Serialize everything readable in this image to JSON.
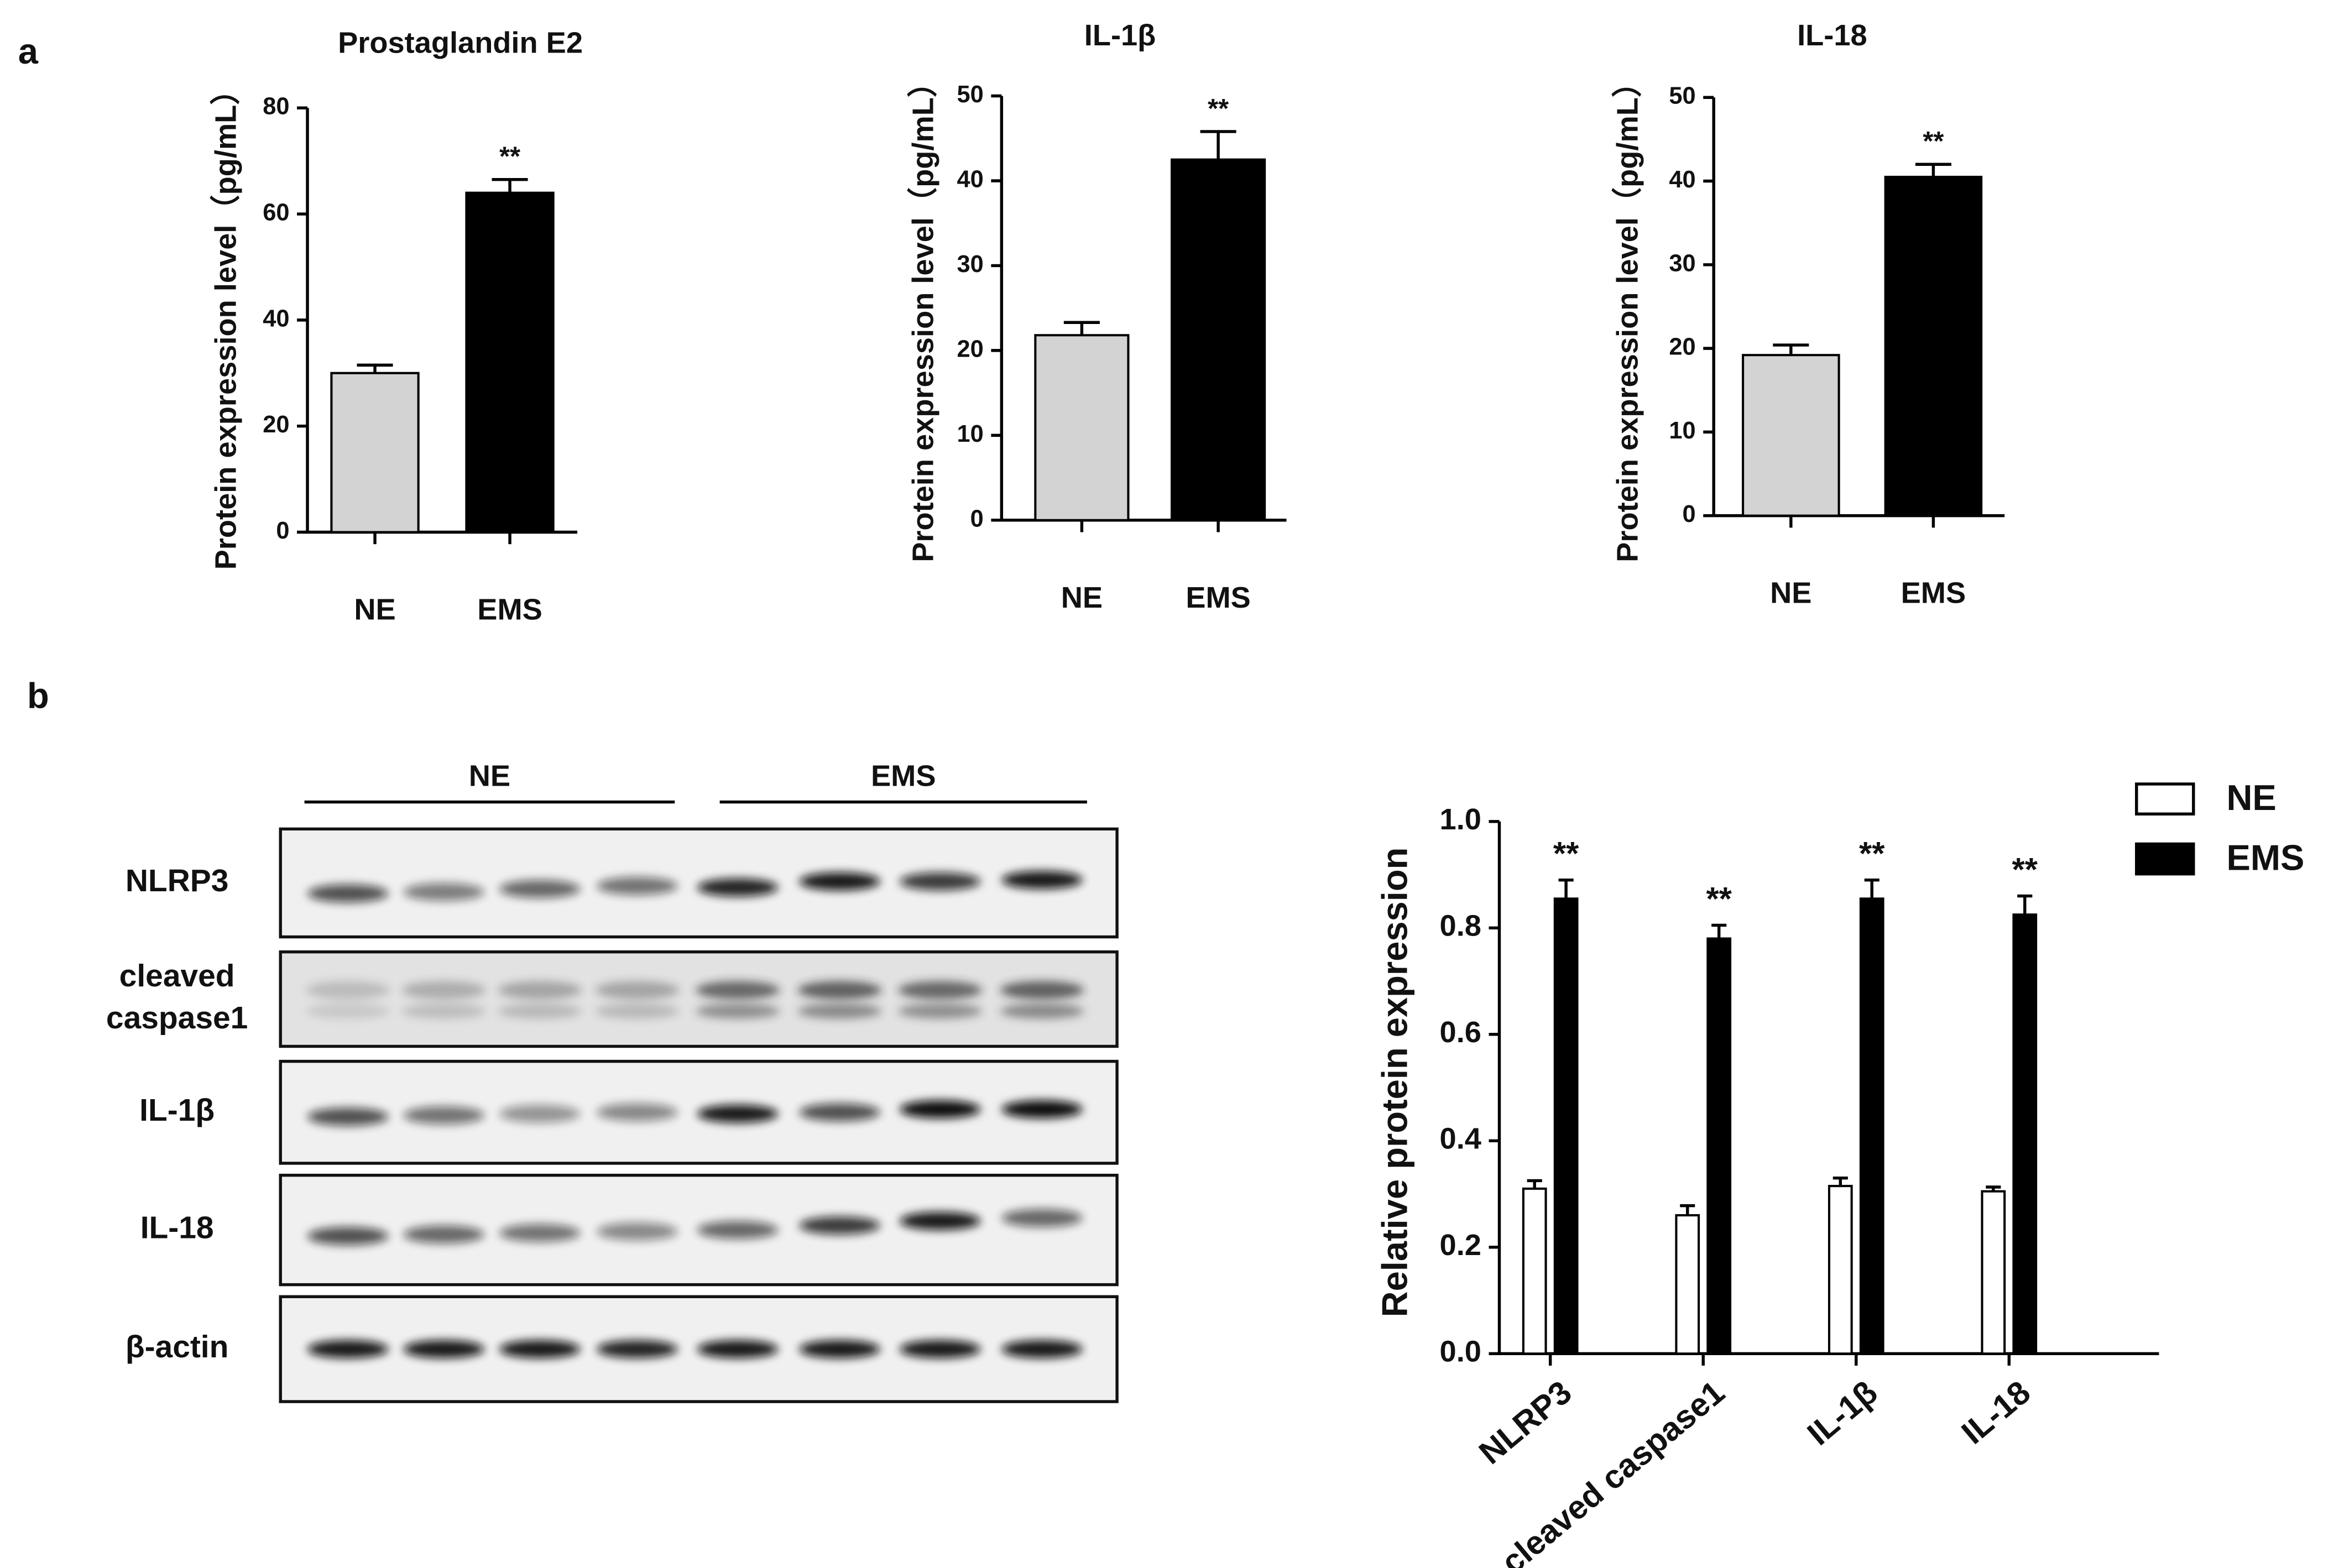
{
  "panels": [
    "a",
    "b"
  ],
  "blot": {
    "groups": [
      "NE",
      "EMS"
    ],
    "rows": [
      [
        "NLRP3"
      ],
      [
        "cleaved",
        "caspase1"
      ],
      [
        "IL-1β"
      ],
      [
        "IL-18"
      ],
      [
        "β-actin"
      ]
    ]
  },
  "chart_data": [
    {
      "type": "bar",
      "title": "Prostaglandin E2",
      "y_label": "Protein expression level（pg/mL）",
      "categories": [
        "NE",
        "EMS"
      ],
      "values": [
        30,
        64
      ],
      "errors": [
        1.5,
        2.5
      ],
      "colors": [
        "#d3d3d3",
        "#000000"
      ],
      "value_annotations": [
        null,
        "**"
      ],
      "ylim": [
        0,
        80
      ],
      "yticks": [
        0,
        20,
        40,
        60,
        80
      ]
    },
    {
      "type": "bar",
      "title": "IL-1β",
      "y_label": "Protein expression level（pg/mL）",
      "categories": [
        "NE",
        "EMS"
      ],
      "values": [
        21.8,
        42.5
      ],
      "errors": [
        1.5,
        3.3
      ],
      "colors": [
        "#d3d3d3",
        "#000000"
      ],
      "value_annotations": [
        null,
        "**"
      ],
      "ylim": [
        0,
        50
      ],
      "yticks": [
        0,
        10,
        20,
        30,
        40,
        50
      ]
    },
    {
      "type": "bar",
      "title": "IL-18",
      "y_label": "Protein expression level（pg/mL）",
      "categories": [
        "NE",
        "EMS"
      ],
      "values": [
        19.2,
        40.5
      ],
      "errors": [
        1.2,
        1.5
      ],
      "colors": [
        "#d3d3d3",
        "#000000"
      ],
      "value_annotations": [
        null,
        "**"
      ],
      "ylim": [
        0,
        50
      ],
      "yticks": [
        0,
        10,
        20,
        30,
        40,
        50
      ]
    },
    {
      "type": "bar",
      "y_label": "Relative protein expression",
      "categories": [
        "NLRP3",
        "cleaved caspase1",
        "IL-1β",
        "IL-18"
      ],
      "series": [
        {
          "name": "NE",
          "color": "#ffffff",
          "values": [
            0.31,
            0.26,
            0.315,
            0.305
          ],
          "errors": [
            0.015,
            0.018,
            0.015,
            0.008
          ]
        },
        {
          "name": "EMS",
          "color": "#000000",
          "values": [
            0.855,
            0.78,
            0.855,
            0.825
          ],
          "errors": [
            0.035,
            0.025,
            0.035,
            0.035
          ],
          "value_annotations": [
            "**",
            "**",
            "**",
            "**"
          ]
        }
      ],
      "ylim": [
        0,
        1.0
      ],
      "yticks": [
        {
          "value": 0,
          "label": "0.0"
        },
        0.2,
        0.4,
        0.6,
        0.8,
        {
          "value": 1.0,
          "label": "1.0"
        }
      ],
      "legend": "upper right"
    }
  ]
}
